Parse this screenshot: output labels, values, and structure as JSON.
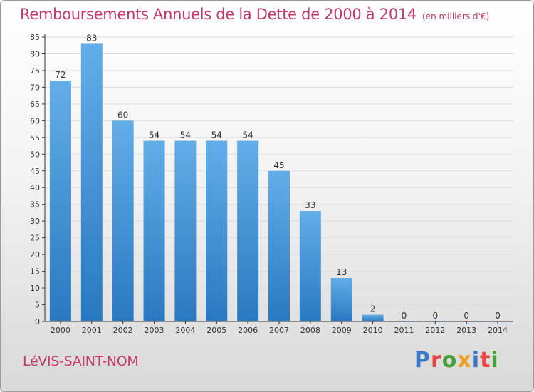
{
  "header": {
    "title": "Remboursements Annuels de la Dette de 2000 à 2014",
    "unit": "(en milliers d'€)"
  },
  "commune": "LéVIS-SAINT-NOM",
  "logo": {
    "text": "Proxiti"
  },
  "colors": {
    "title": "#c23a6b",
    "bar_light": "#62aee8",
    "bar_dark": "#2a78c0",
    "axis": "#333333",
    "grid": "#dddddd"
  },
  "chart_data": {
    "type": "bar",
    "title": "Remboursements Annuels de la Dette de 2000 à 2014",
    "xlabel": "",
    "ylabel": "",
    "categories": [
      "2000",
      "2001",
      "2002",
      "2003",
      "2004",
      "2005",
      "2006",
      "2007",
      "2008",
      "2009",
      "2010",
      "2011",
      "2012",
      "2013",
      "2014"
    ],
    "values": [
      72,
      83,
      60,
      54,
      54,
      54,
      54,
      45,
      33,
      13,
      2,
      0,
      0,
      0,
      0
    ],
    "ylim": [
      0,
      85
    ],
    "yticks": [
      0,
      5,
      10,
      15,
      20,
      25,
      30,
      35,
      40,
      45,
      50,
      55,
      60,
      65,
      70,
      75,
      80,
      85
    ],
    "grid": true,
    "legend": "none"
  }
}
